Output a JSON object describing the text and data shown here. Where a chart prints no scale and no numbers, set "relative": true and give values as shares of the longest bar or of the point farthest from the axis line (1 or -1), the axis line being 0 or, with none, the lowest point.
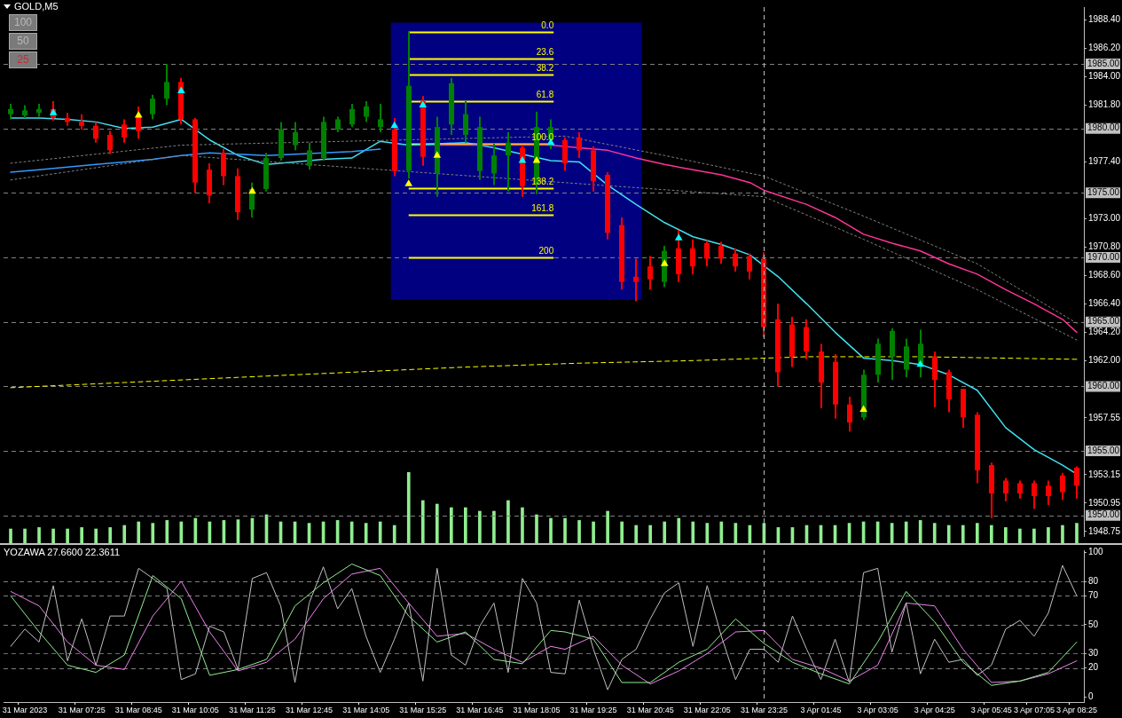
{
  "chart_data": [
    {
      "type": "candlestick",
      "title": "GOLD,M5",
      "categories": [
        null,
        "31 Mar 2023",
        null,
        null,
        null,
        "31 Mar 07:25",
        null,
        null,
        null,
        "31 Mar 08:45",
        null,
        null,
        null,
        "31 Mar 10:05",
        null,
        null,
        null,
        "31 Mar 11:25",
        null,
        null,
        null,
        "31 Mar 12:45",
        null,
        null,
        null,
        "31 Mar 14:05",
        null,
        null,
        null,
        "31 Mar 15:25",
        null,
        null,
        null,
        "31 Mar 16:45",
        null,
        null,
        null,
        "31 Mar 18:05",
        null,
        null,
        null,
        "31 Mar 19:25",
        null,
        null,
        null,
        "31 Mar 20:45",
        null,
        null,
        null,
        "31 Mar 22:05",
        null,
        null,
        null,
        "31 Mar 23:25",
        null,
        null,
        null,
        "3 Apr 01:45",
        null,
        null,
        null,
        "3 Apr 03:05",
        null,
        null,
        null,
        "3 Apr 04:25",
        null,
        null,
        null,
        "3 Apr 05:45",
        null,
        null,
        "3 Apr 07:05",
        null,
        null,
        "3 Apr 08:25"
      ],
      "ohlc": [
        [
          1981.1,
          1981.9,
          1980.7,
          1981.5
        ],
        [
          1981.0,
          1981.8,
          1980.8,
          1981.4
        ],
        [
          1981.2,
          1981.9,
          1980.9,
          1981.5
        ],
        [
          1981.5,
          1982.1,
          1980.6,
          1980.8
        ],
        [
          1980.8,
          1981.2,
          1980.2,
          1980.5
        ],
        [
          1980.5,
          1981.1,
          1979.9,
          1980.2
        ],
        [
          1980.2,
          1980.5,
          1978.9,
          1979.2
        ],
        [
          1979.5,
          1979.8,
          1978.0,
          1978.3
        ],
        [
          1980.3,
          1980.7,
          1978.9,
          1979.3
        ],
        [
          1980.9,
          1981.7,
          1979.2,
          1979.8
        ],
        [
          1981.1,
          1982.6,
          1980.7,
          1982.3
        ],
        [
          1982.3,
          1985.0,
          1981.8,
          1983.6
        ],
        [
          1983.6,
          1983.9,
          1980.3,
          1980.7
        ],
        [
          1980.7,
          1980.8,
          1975.0,
          1975.8
        ],
        [
          1976.8,
          1977.3,
          1974.2,
          1974.8
        ],
        [
          1978.1,
          1978.4,
          1975.6,
          1976.3
        ],
        [
          1976.3,
          1976.9,
          1972.9,
          1973.5
        ],
        [
          1973.7,
          1975.8,
          1973.1,
          1975.3
        ],
        [
          1975.3,
          1978.1,
          1975.1,
          1977.7
        ],
        [
          1977.7,
          1980.5,
          1977.5,
          1979.9
        ],
        [
          1978.7,
          1980.5,
          1978.3,
          1979.7
        ],
        [
          1977.1,
          1978.9,
          1976.8,
          1978.3
        ],
        [
          1977.7,
          1980.9,
          1977.5,
          1980.5
        ],
        [
          1979.9,
          1980.9,
          1979.7,
          1980.7
        ],
        [
          1980.3,
          1981.9,
          1980.1,
          1981.5
        ],
        [
          1980.9,
          1982.1,
          1980.5,
          1981.7
        ],
        [
          1980.1,
          1981.9,
          1979.7,
          1980.7
        ],
        [
          1979.9,
          1980.8,
          1976.3,
          1976.7
        ],
        [
          1976.7,
          1987.5,
          1976.1,
          1983.3
        ],
        [
          1982.1,
          1982.5,
          1977.1,
          1977.8
        ],
        [
          1976.5,
          1980.9,
          1974.7,
          1980.1
        ],
        [
          1980.3,
          1983.9,
          1979.5,
          1983.5
        ],
        [
          1979.5,
          1982.1,
          1978.9,
          1981.1
        ],
        [
          1976.7,
          1980.9,
          1976.0,
          1980.1
        ],
        [
          1976.5,
          1978.8,
          1975.6,
          1977.9
        ],
        [
          1977.9,
          1979.7,
          1975.1,
          1978.9
        ],
        [
          1978.5,
          1978.7,
          1974.7,
          1975.5
        ],
        [
          1975.7,
          1981.3,
          1974.9,
          1980.1
        ],
        [
          1979.1,
          1980.7,
          1978.4,
          1980.1
        ],
        [
          1979.1,
          1979.3,
          1976.7,
          1977.3
        ],
        [
          1979.3,
          1979.7,
          1977.7,
          1978.3
        ],
        [
          1978.3,
          1978.6,
          1975.1,
          1975.9
        ],
        [
          1976.4,
          1976.6,
          1971.4,
          1971.9
        ],
        [
          1972.5,
          1973.1,
          1967.5,
          1968.1
        ],
        [
          1968.5,
          1969.9,
          1966.6,
          1968.1
        ],
        [
          1969.3,
          1970.1,
          1967.5,
          1968.3
        ],
        [
          1968.1,
          1970.9,
          1967.7,
          1970.5
        ],
        [
          1970.7,
          1972.1,
          1968.1,
          1968.7
        ],
        [
          1970.7,
          1971.4,
          1968.7,
          1969.3
        ],
        [
          1971.1,
          1971.3,
          1969.3,
          1969.9
        ],
        [
          1970.9,
          1971.2,
          1969.5,
          1969.9
        ],
        [
          1970.3,
          1970.7,
          1968.9,
          1969.3
        ],
        [
          1970.1,
          1970.3,
          1968.3,
          1968.9
        ],
        [
          1969.9,
          1970.4,
          1963.8,
          1964.6
        ],
        [
          1965.2,
          1966.4,
          1960.0,
          1961.1
        ],
        [
          1964.8,
          1965.4,
          1961.5,
          1962.3
        ],
        [
          1964.6,
          1965.2,
          1962.1,
          1962.7
        ],
        [
          1962.7,
          1963.3,
          1958.3,
          1960.3
        ],
        [
          1961.9,
          1962.5,
          1957.5,
          1958.6
        ],
        [
          1958.6,
          1959.2,
          1956.5,
          1957.2
        ],
        [
          1957.6,
          1961.3,
          1957.4,
          1960.9
        ],
        [
          1960.9,
          1963.7,
          1960.3,
          1963.3
        ],
        [
          1962.3,
          1964.5,
          1960.5,
          1964.3
        ],
        [
          1961.3,
          1963.7,
          1960.7,
          1963.1
        ],
        [
          1961.7,
          1964.4,
          1960.7,
          1963.3
        ],
        [
          1962.3,
          1962.7,
          1958.4,
          1960.5
        ],
        [
          1961.1,
          1961.3,
          1958.0,
          1959.0
        ],
        [
          1959.8,
          1959.8,
          1956.8,
          1957.6
        ],
        [
          1957.8,
          1958.0,
          1952.5,
          1953.5
        ],
        [
          1953.9,
          1954.1,
          1949.8,
          1951.7
        ],
        [
          1952.7,
          1952.9,
          1951.1,
          1951.7
        ],
        [
          1952.5,
          1952.7,
          1951.3,
          1951.7
        ],
        [
          1952.5,
          1952.7,
          1950.5,
          1951.5
        ],
        [
          1952.3,
          1952.7,
          1950.8,
          1951.5
        ],
        [
          1953.1,
          1953.3,
          1951.2,
          1951.8
        ],
        [
          1953.7,
          1953.8,
          1951.3,
          1952.3
        ]
      ],
      "colors": [
        "#008000",
        "#008000",
        "#008000",
        "#ff0000",
        "#ff0000",
        "#ff0000",
        "#ff0000",
        "#ff0000",
        "#ff0000",
        "#ff0000",
        "#008000",
        "#008000",
        "#ff0000",
        "#ff0000",
        "#ff0000",
        "#ff0000",
        "#ff0000",
        "#008000",
        "#008000",
        "#008000",
        "#008000",
        "#008000",
        "#008000",
        "#008000",
        "#008000",
        "#008000",
        "#008000",
        "#ff0000",
        "#008000",
        "#ff0000",
        "#008000",
        "#008000",
        "#008000",
        "#008000",
        "#008000",
        "#008000",
        "#ff0000",
        "#008000",
        "#008000",
        "#ff0000",
        "#ff0000",
        "#ff0000",
        "#ff0000",
        "#ff0000",
        "#ff0000",
        "#ff0000",
        "#008000",
        "#ff0000",
        "#ff0000",
        "#ff0000",
        "#ff0000",
        "#ff0000",
        "#ff0000",
        "#ff0000",
        "#ff0000",
        "#ff0000",
        "#ff0000",
        "#ff0000",
        "#ff0000",
        "#ff0000",
        "#008000",
        "#008000",
        "#008000",
        "#008000",
        "#008000",
        "#ff0000",
        "#ff0000",
        "#ff0000",
        "#ff0000",
        "#ff0000",
        "#ff0000",
        "#ff0000",
        "#ff0000",
        "#ff0000",
        "#ff0000",
        "#ff0000"
      ],
      "series": [
        {
          "type": "line",
          "color": "#808080",
          "line_style": "dotted",
          "values": [
            1977.3,
            null,
            null,
            null,
            null,
            null,
            null,
            null,
            null,
            null,
            null,
            null,
            1978.7,
            null,
            null,
            null,
            null,
            null,
            null,
            null,
            null,
            null,
            null,
            null,
            null,
            null,
            null,
            null,
            null,
            null,
            null,
            null,
            null,
            null,
            null,
            null,
            null,
            null,
            null,
            1979.4,
            null,
            null,
            null,
            null,
            null,
            null,
            1977.9,
            null,
            null,
            null,
            null,
            null,
            null,
            1976.3,
            null,
            null,
            null,
            null,
            null,
            null,
            1973.2,
            null,
            null,
            null,
            null,
            null,
            null,
            null,
            1969.5,
            null,
            null,
            null,
            null,
            null,
            null,
            1964.9
          ]
        },
        {
          "type": "line",
          "color": "#808080",
          "line_style": "dotted",
          "values": [
            1976.0,
            null,
            null,
            null,
            null,
            null,
            null,
            null,
            null,
            null,
            null,
            null,
            1977.9,
            null,
            null,
            null,
            null,
            null,
            null,
            null,
            null,
            null,
            null,
            null,
            null,
            null,
            null,
            null,
            null,
            null,
            null,
            null,
            null,
            null,
            null,
            null,
            null,
            null,
            null,
            null,
            null,
            null,
            null,
            null,
            null,
            null,
            null,
            null,
            null,
            null,
            null,
            null,
            null,
            1974.7,
            null,
            null,
            null,
            null,
            null,
            null,
            1971.4,
            null,
            null,
            null,
            null,
            null,
            null,
            null,
            1967.5,
            null,
            null,
            null,
            null,
            null,
            null,
            1963.6
          ]
        },
        {
          "type": "line",
          "color": "#ffff00",
          "line_style": "dashed",
          "values": [
            1959.9,
            null,
            null,
            null,
            null,
            null,
            null,
            null,
            1960.3,
            null,
            null,
            null,
            null,
            null,
            null,
            null,
            1960.7,
            null,
            null,
            null,
            null,
            null,
            null,
            null,
            1961.1,
            null,
            null,
            null,
            null,
            null,
            null,
            null,
            1961.5,
            null,
            null,
            null,
            null,
            null,
            null,
            null,
            1961.8,
            null,
            null,
            null,
            null,
            null,
            null,
            null,
            1962.0,
            null,
            null,
            null,
            null,
            null,
            null,
            null,
            1962.3,
            null,
            null,
            null,
            null,
            null,
            null,
            null,
            1962.3,
            null,
            null,
            null,
            null,
            null,
            null,
            null,
            null,
            null,
            null,
            1962.1
          ]
        },
        {
          "type": "line",
          "color": "#3399ff",
          "values": [
            1976.6,
            null,
            1976.8,
            null,
            1977.0,
            null,
            1977.2,
            null,
            1977.4,
            null,
            1977.6,
            null,
            1977.9,
            null,
            1978.1,
            null,
            1978.0,
            null,
            1977.9,
            null,
            1978.0,
            null,
            1978.1,
            null,
            1978.2,
            null,
            1978.4,
            null,
            null,
            null,
            null,
            null,
            null,
            null,
            null,
            null,
            null,
            null,
            null,
            null,
            null,
            null,
            null,
            null,
            null,
            null,
            null,
            null,
            null,
            null,
            null,
            null,
            null,
            null,
            null,
            null,
            null,
            null,
            null,
            null,
            null,
            null,
            null,
            null,
            null,
            null,
            null,
            null,
            null,
            null,
            null,
            null,
            null,
            null,
            null,
            null
          ]
        },
        {
          "type": "line",
          "color": "#ff3399",
          "values": [
            null,
            null,
            null,
            null,
            null,
            null,
            null,
            null,
            null,
            null,
            null,
            null,
            null,
            null,
            null,
            null,
            null,
            null,
            null,
            null,
            null,
            null,
            null,
            null,
            null,
            null,
            null,
            null,
            null,
            null,
            1978.7,
            null,
            1978.7,
            null,
            1978.7,
            null,
            1978.7,
            null,
            1978.7,
            null,
            1978.5,
            null,
            1978.3,
            null,
            1977.7,
            null,
            1977.2,
            null,
            1976.8,
            null,
            1976.4,
            null,
            1975.8,
            1975.2,
            null,
            null,
            1974.1,
            null,
            1973.1,
            null,
            1971.8,
            null,
            1971.1,
            null,
            1970.5,
            null,
            1969.5,
            null,
            1968.7,
            null,
            1967.5,
            null,
            1966.4,
            null,
            1965.2,
            1964.2
          ]
        },
        {
          "type": "line",
          "color": "#40e0f0",
          "values": [
            1980.8,
            null,
            1980.8,
            null,
            1980.7,
            null,
            1980.5,
            null,
            1980.0,
            null,
            1980.1,
            null,
            1980.7,
            null,
            1979.1,
            null,
            1977.9,
            null,
            1977.2,
            null,
            1977.4,
            null,
            1977.6,
            null,
            1977.7,
            null,
            1979.0,
            null,
            1978.7,
            null,
            null,
            null,
            1978.9,
            null,
            1978.5,
            null,
            null,
            null,
            1977.5,
            null,
            1977.4,
            null,
            1975.6,
            null,
            1974.1,
            null,
            1972.7,
            null,
            1971.6,
            null,
            1971.0,
            null,
            1970.2,
            null,
            1968.5,
            null,
            1966.4,
            null,
            1964.2,
            null,
            1962.2,
            null,
            1962.0,
            null,
            1961.7,
            null,
            1960.9,
            null,
            1959.7,
            null,
            1956.8,
            null,
            1955.1,
            null,
            1953.9,
            1953.2
          ]
        },
        {
          "type": "scatter",
          "color": "#ffff00",
          "marker": "triangle",
          "values": [
            null,
            null,
            null,
            null,
            null,
            null,
            null,
            null,
            null,
            1981.0,
            null,
            null,
            null,
            null,
            null,
            null,
            null,
            1975.1,
            null,
            null,
            null,
            null,
            null,
            null,
            null,
            null,
            null,
            null,
            1975.7,
            null,
            1977.9,
            null,
            null,
            null,
            null,
            null,
            null,
            1977.5,
            null,
            null,
            null,
            null,
            null,
            null,
            null,
            null,
            1969.5,
            null,
            null,
            null,
            null,
            null,
            null,
            null,
            null,
            null,
            null,
            null,
            null,
            null,
            1958.2,
            null,
            null,
            null,
            null,
            null,
            null,
            null,
            null,
            null,
            null,
            null,
            null,
            null,
            null,
            null
          ]
        },
        {
          "type": "scatter",
          "color": "#00ffff",
          "marker": "triangle",
          "values": [
            null,
            null,
            null,
            1981.2,
            null,
            null,
            null,
            null,
            null,
            null,
            null,
            null,
            1982.9,
            null,
            null,
            null,
            null,
            null,
            null,
            null,
            null,
            null,
            null,
            null,
            null,
            null,
            null,
            1980.2,
            null,
            1981.8,
            null,
            null,
            null,
            null,
            null,
            null,
            1977.5,
            null,
            1978.9,
            null,
            null,
            null,
            null,
            null,
            null,
            null,
            null,
            1971.5,
            null,
            null,
            null,
            null,
            null,
            null,
            null,
            null,
            null,
            null,
            null,
            null,
            null,
            null,
            null,
            null,
            1961.7,
            null,
            null,
            null,
            null,
            null,
            null,
            null,
            null,
            null,
            null,
            null
          ]
        }
      ],
      "ylim": [
        1948.4,
        1989.4
      ],
      "yticks": [
        {
          "value": 1988.4,
          "label": "1988.40"
        },
        {
          "value": 1986.2,
          "label": "1986.20"
        },
        {
          "value": 1984,
          "label": "1984.00"
        },
        {
          "value": 1981.8,
          "label": "1981.80"
        },
        {
          "value": 1977.4,
          "label": "1977.40"
        },
        {
          "value": 1973,
          "label": "1973.00"
        },
        {
          "value": 1970.8,
          "label": "1970.80"
        },
        {
          "value": 1968.6,
          "label": "1968.60"
        },
        {
          "value": 1966.4,
          "label": "1966.40"
        },
        {
          "value": 1964.2,
          "label": "1964.20"
        },
        {
          "value": 1962,
          "label": "1962.00"
        },
        {
          "value": 1957.55,
          "label": "1957.55"
        },
        {
          "value": 1953.15,
          "label": "1953.15"
        },
        {
          "value": 1950.95,
          "label": "1950.95"
        },
        {
          "value": 1948.75,
          "label": "1948.75"
        }
      ],
      "ref_lines": [
        {
          "axis": "y",
          "value": 1985,
          "label": "1985.00",
          "color": "#808080",
          "line_style": "dashed"
        },
        {
          "axis": "y",
          "value": 1980,
          "label": "1980.00",
          "color": "#808080",
          "line_style": "dashed"
        },
        {
          "axis": "y",
          "value": 1975,
          "label": "1975.00",
          "color": "#808080",
          "line_style": "dashed"
        },
        {
          "axis": "y",
          "value": 1970,
          "label": "1970.00",
          "color": "#808080",
          "line_style": "dashed"
        },
        {
          "axis": "y",
          "value": 1965,
          "label": "1965.00",
          "color": "#808080",
          "line_style": "dashed"
        },
        {
          "axis": "y",
          "value": 1960,
          "label": "1960.00",
          "color": "#808080",
          "line_style": "dashed"
        },
        {
          "axis": "y",
          "value": 1955,
          "label": "1955.00",
          "color": "#808080",
          "line_style": "dashed"
        },
        {
          "axis": "y",
          "value": 1950,
          "label": "1950.00",
          "color": "#808080",
          "line_style": "dashed"
        },
        {
          "axis": "x",
          "value": "31 Mar 23:25",
          "color": "#c0c0c0",
          "line_style": "dashed"
        },
        {
          "axis": "y",
          "value": 1987.5,
          "color": "#ffff00",
          "line_style": "solid"
        },
        {
          "axis": "y",
          "value": 1985.4,
          "color": "#ffff00",
          "line_style": "solid"
        },
        {
          "axis": "y",
          "value": 1984.2,
          "color": "#ffff00",
          "line_style": "solid"
        },
        {
          "axis": "y",
          "value": 1982.1,
          "color": "#ffff00",
          "line_style": "solid"
        },
        {
          "axis": "y",
          "value": 1978.8,
          "color": "#ffff00",
          "line_style": "solid"
        },
        {
          "axis": "y",
          "value": 1975.4,
          "color": "#ffff00",
          "line_style": "solid"
        },
        {
          "axis": "y",
          "value": 1973.3,
          "color": "#ffff00",
          "line_style": "solid"
        },
        {
          "axis": "y",
          "value": 1970.0,
          "color": "#ffff00",
          "line_style": "solid"
        }
      ],
      "bands": [
        {
          "axis": "y",
          "from": 1966.7,
          "to": 1988.2,
          "color": "#000080"
        }
      ],
      "annotations": [
        "100",
        "50",
        "25",
        "0.0",
        "23.6",
        "38.2",
        "61.8",
        "100.0",
        "138.2",
        "161.8",
        "200"
      ],
      "tick_labels": "y",
      "legend": false,
      "grid": false
    },
    {
      "type": "bar",
      "relative": true,
      "categories": [
        null,
        "31 Mar 2023",
        null,
        null,
        null,
        "31 Mar 07:25",
        null,
        null,
        null,
        "31 Mar 08:45",
        null,
        null,
        null,
        "31 Mar 10:05",
        null,
        null,
        null,
        "31 Mar 11:25",
        null,
        null,
        null,
        "31 Mar 12:45",
        null,
        null,
        null,
        "31 Mar 14:05",
        null,
        null,
        null,
        "31 Mar 15:25",
        null,
        null,
        null,
        "31 Mar 16:45",
        null,
        null,
        null,
        "31 Mar 18:05",
        null,
        null,
        null,
        "31 Mar 19:25",
        null,
        null,
        null,
        "31 Mar 20:45",
        null,
        null,
        null,
        "31 Mar 22:05",
        null,
        null,
        null,
        "31 Mar 23:25",
        null,
        null,
        null,
        "3 Apr 01:45",
        null,
        null,
        null,
        "3 Apr 03:05",
        null,
        null,
        null,
        "3 Apr 04:25",
        null,
        null,
        null,
        "3 Apr 05:45",
        null,
        null,
        "3 Apr 07:05",
        null,
        null,
        "3 Apr 08:25"
      ],
      "values": [
        0.2,
        0.2,
        0.22,
        0.2,
        0.2,
        0.22,
        0.2,
        0.22,
        0.25,
        0.3,
        0.28,
        0.32,
        0.3,
        0.35,
        0.3,
        0.32,
        0.33,
        0.35,
        0.4,
        0.3,
        0.3,
        0.28,
        0.3,
        0.32,
        0.3,
        0.28,
        0.3,
        0.25,
        1,
        0.6,
        0.55,
        0.5,
        0.5,
        0.45,
        0.45,
        0.6,
        0.5,
        0.4,
        0.35,
        0.35,
        0.32,
        0.3,
        0.45,
        0.3,
        0.25,
        0.25,
        0.3,
        0.35,
        0.3,
        0.28,
        0.3,
        0.28,
        0.25,
        0.28,
        0.22,
        0.22,
        0.25,
        0.25,
        0.25,
        0.28,
        0.3,
        0.3,
        0.28,
        0.3,
        0.32,
        0.28,
        0.25,
        0.25,
        0.28,
        0.25,
        0.22,
        0.2,
        0.2,
        0.22,
        0.25,
        0.28
      ],
      "color": "#90ee90",
      "tick_labels": false,
      "legend": false,
      "grid": false
    },
    {
      "type": "line",
      "title": "YOZAWA 27.6600 22.3611",
      "categories": [
        null,
        "31 Mar 2023",
        null,
        null,
        null,
        "31 Mar 07:25",
        null,
        null,
        null,
        "31 Mar 08:45",
        null,
        null,
        null,
        "31 Mar 10:05",
        null,
        null,
        null,
        "31 Mar 11:25",
        null,
        null,
        null,
        "31 Mar 12:45",
        null,
        null,
        null,
        "31 Mar 14:05",
        null,
        null,
        null,
        "31 Mar 15:25",
        null,
        null,
        null,
        "31 Mar 16:45",
        null,
        null,
        null,
        "31 Mar 18:05",
        null,
        null,
        null,
        "31 Mar 19:25",
        null,
        null,
        null,
        "31 Mar 20:45",
        null,
        null,
        null,
        "31 Mar 22:05",
        null,
        null,
        null,
        "31 Mar 23:25",
        null,
        null,
        null,
        "3 Apr 01:45",
        null,
        null,
        null,
        "3 Apr 03:05",
        null,
        null,
        null,
        "3 Apr 04:25",
        null,
        null,
        null,
        "3 Apr 05:45",
        null,
        null,
        "3 Apr 07:05",
        null,
        null,
        "3 Apr 08:25"
      ],
      "series": [
        {
          "color": "#c0c0c0",
          "values": [
            35,
            47,
            38,
            77,
            25,
            54,
            22,
            56,
            56,
            89,
            82,
            75,
            12,
            16,
            49,
            45,
            19,
            82,
            86,
            63,
            10,
            65,
            90,
            61,
            75,
            42,
            17,
            40,
            65,
            11,
            89,
            29,
            22,
            49,
            65,
            17,
            82,
            65,
            17,
            16,
            67,
            33,
            5,
            26,
            33,
            54,
            72,
            79,
            35,
            77,
            42,
            12,
            33,
            33,
            24,
            56,
            33,
            12,
            40,
            10,
            86,
            89,
            31,
            65,
            16,
            40,
            24,
            26,
            15,
            22,
            47,
            53,
            42,
            58,
            91,
            70
          ]
        },
        {
          "color": "#90ee90",
          "values": [
            70,
            null,
            45,
            null,
            22,
            null,
            17,
            null,
            29,
            null,
            84,
            null,
            68,
            null,
            15,
            null,
            19,
            null,
            26,
            null,
            63,
            null,
            79,
            null,
            92,
            null,
            84,
            null,
            56,
            null,
            38,
            null,
            45,
            null,
            26,
            null,
            23,
            null,
            46,
            45,
            null,
            40,
            null,
            10,
            null,
            10,
            null,
            24,
            null,
            33,
            null,
            54,
            null,
            37,
            null,
            24,
            null,
            16,
            null,
            9,
            null,
            38,
            null,
            73,
            null,
            52,
            null,
            24,
            null,
            8,
            null,
            11,
            null,
            17,
            null,
            38
          ]
        },
        {
          "color": "#ee82ee",
          "values": [
            73,
            null,
            63,
            null,
            38,
            null,
            22,
            null,
            19,
            null,
            56,
            null,
            80,
            null,
            45,
            null,
            18,
            null,
            24,
            null,
            40,
            null,
            68,
            null,
            85,
            null,
            89,
            null,
            65,
            null,
            42,
            null,
            44,
            null,
            33,
            null,
            24,
            null,
            35,
            33,
            null,
            42,
            null,
            22,
            null,
            9,
            null,
            18,
            null,
            30,
            null,
            45,
            null,
            46,
            null,
            26,
            null,
            20,
            null,
            11,
            null,
            22,
            null,
            65,
            null,
            63,
            null,
            33,
            null,
            10,
            null,
            11,
            null,
            16,
            null,
            25
          ]
        }
      ],
      "ylim": [
        -3.5,
        101.5
      ],
      "yticks": [
        0,
        20,
        30,
        50,
        70,
        80,
        100
      ],
      "ref_lines": [
        {
          "axis": "y",
          "value": 80,
          "color": "#808080",
          "line_style": "dashed"
        },
        {
          "axis": "y",
          "value": 70,
          "color": "#808080",
          "line_style": "dashed"
        },
        {
          "axis": "y",
          "value": 50,
          "color": "#808080",
          "line_style": "dashed"
        },
        {
          "axis": "y",
          "value": 30,
          "color": "#6e6e6e",
          "line_style": "dashed"
        },
        {
          "axis": "y",
          "value": 20,
          "color": "#808080",
          "line_style": "dashed"
        },
        {
          "axis": "x",
          "value": "31 Mar 23:25",
          "color": "#c0c0c0",
          "line_style": "dashed"
        }
      ],
      "legend": false,
      "grid": false
    }
  ]
}
